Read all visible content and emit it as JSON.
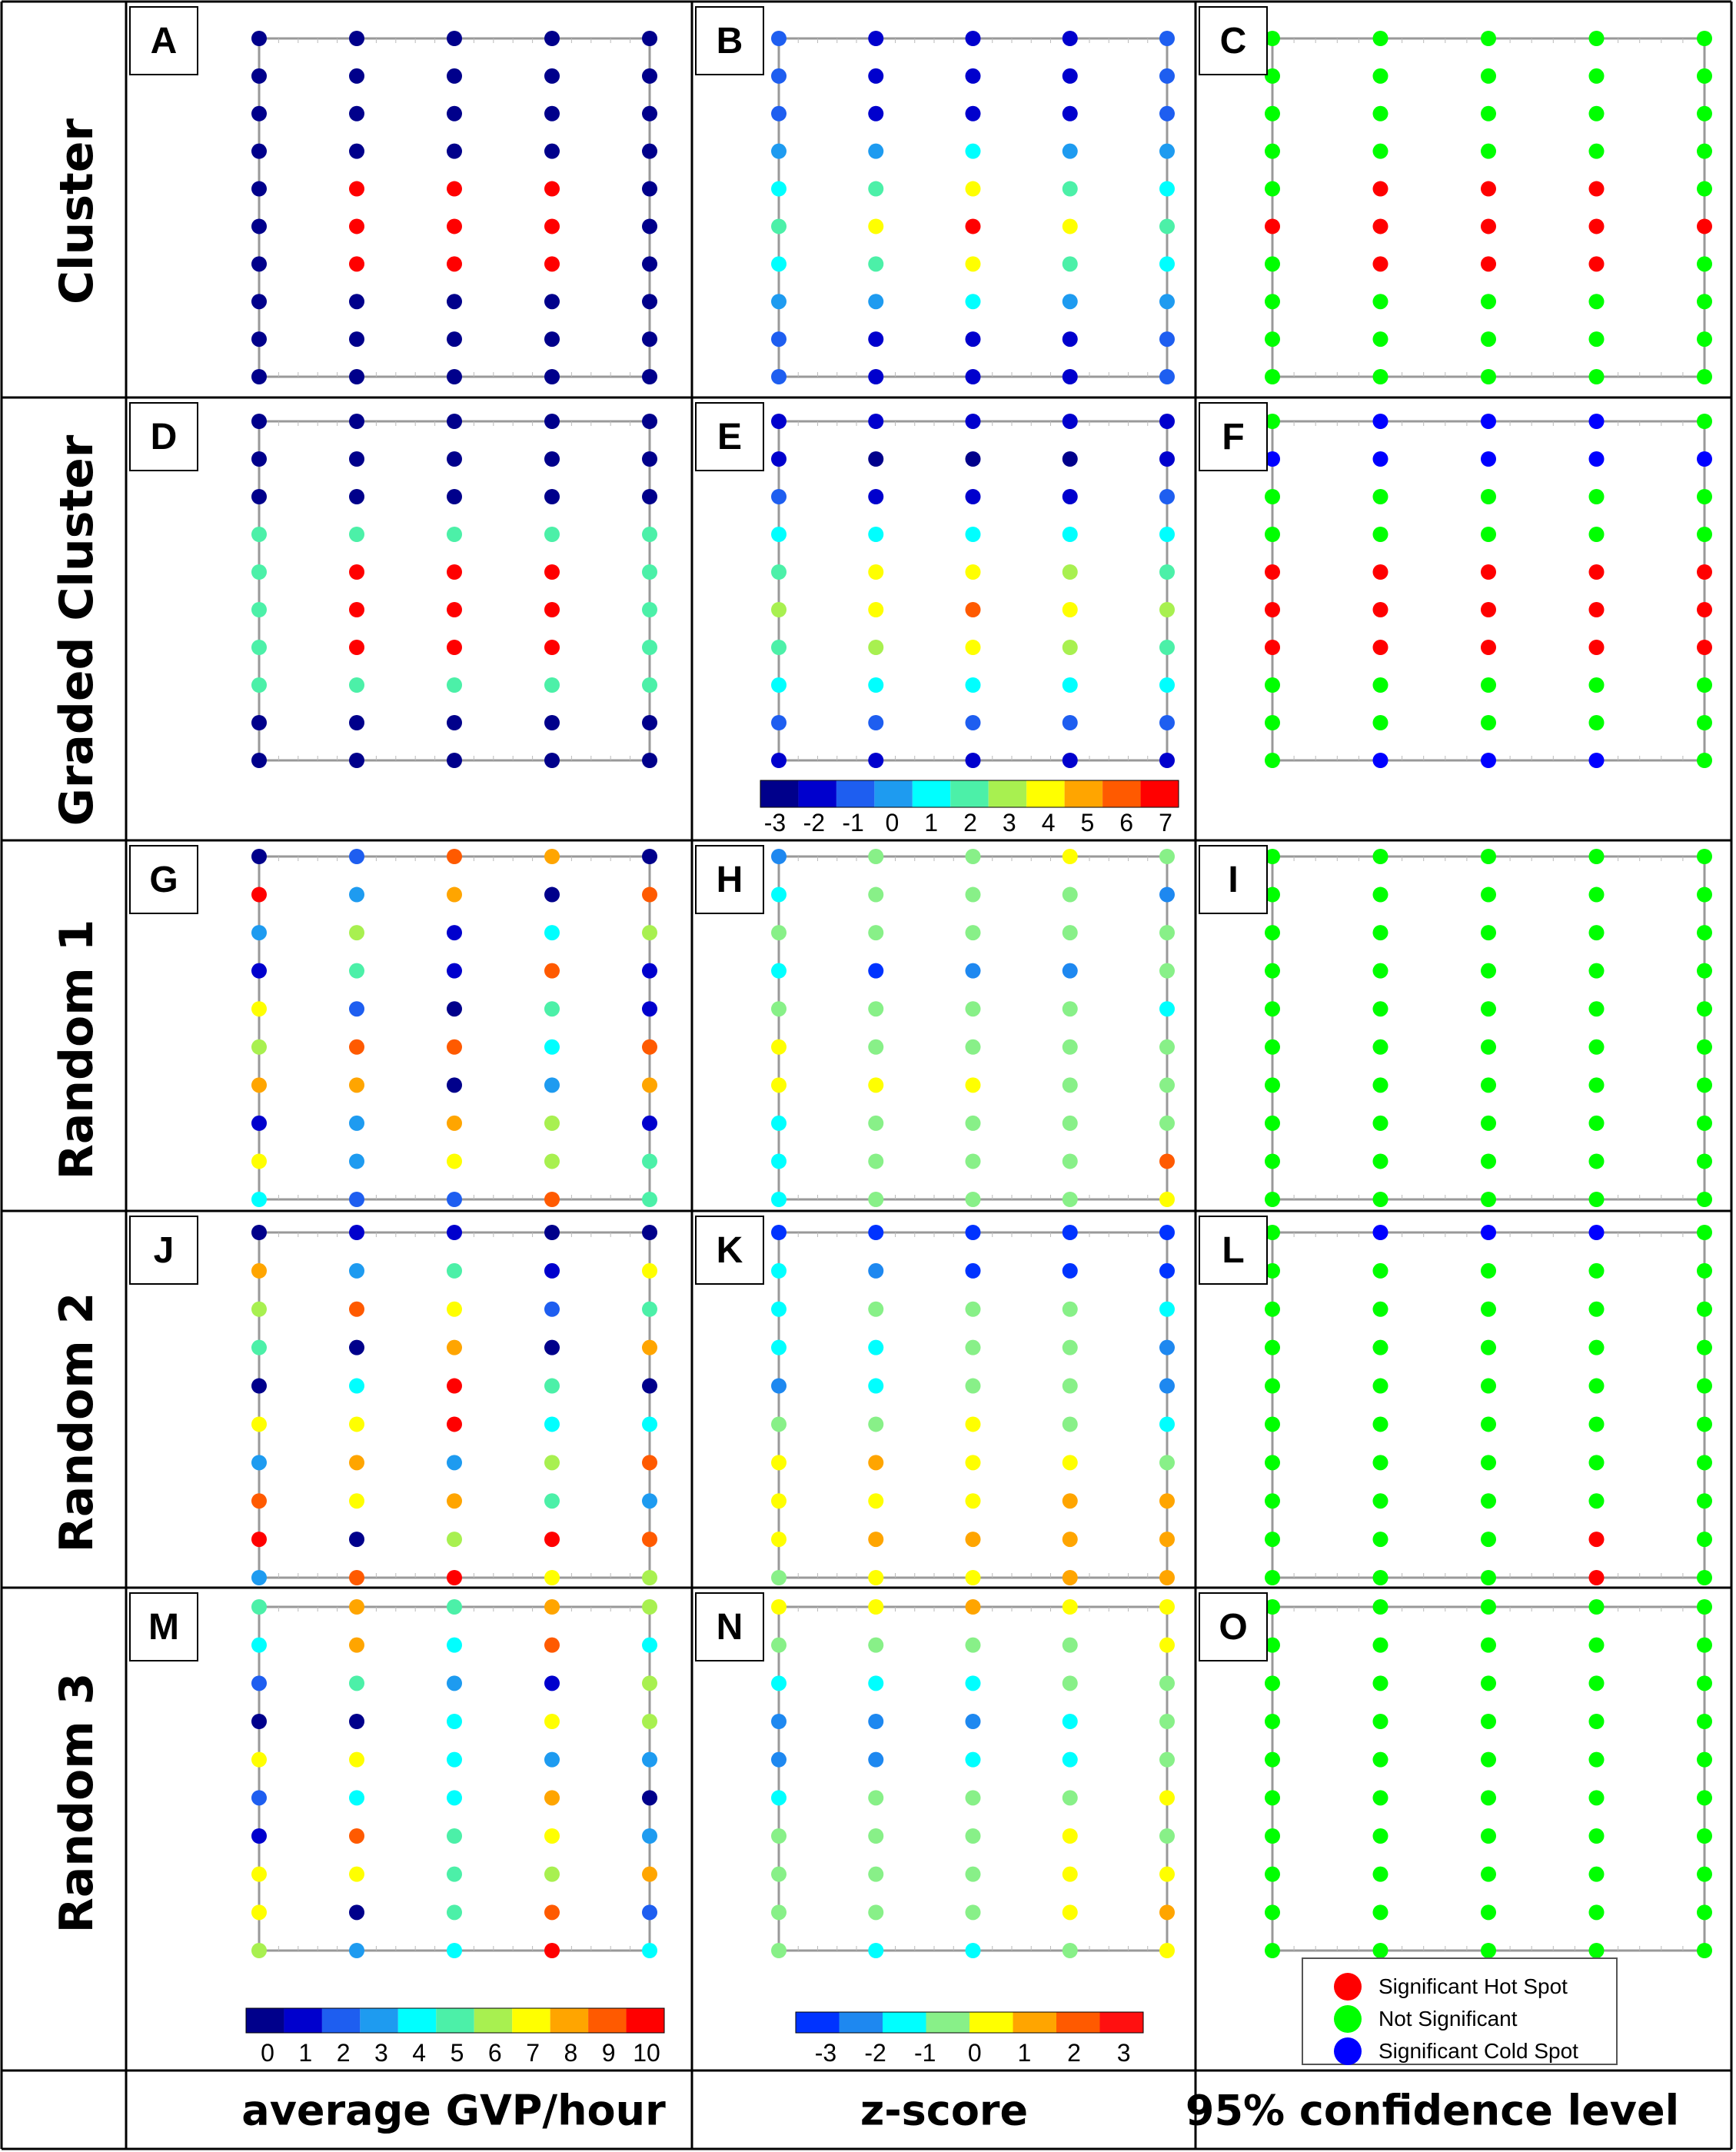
{
  "row_labels": [
    "Cluster",
    "Graded Cluster",
    "Random 1",
    "Random 2",
    "Random 3"
  ],
  "column_labels": [
    "average GVP/hour",
    "z-score",
    "95% confidence level"
  ],
  "panel_letters": [
    "A",
    "B",
    "C",
    "D",
    "E",
    "F",
    "G",
    "H",
    "I",
    "J",
    "K",
    "L",
    "M",
    "N",
    "O"
  ],
  "chart_data": {
    "type": "scatter",
    "description_grid": "5 columns x 10 rows of sampling points per panel; values listed top row to bottom row, each row left to right",
    "colorbars": [
      {
        "name": "graded-cluster-z",
        "ticks": [
          "-3",
          "-2",
          "-1",
          "0",
          "1",
          "2",
          "3",
          "4",
          "5",
          "6",
          "7"
        ],
        "colors": [
          "#00008b",
          "#0000cd",
          "#1e5ef0",
          "#1e9bf0",
          "#00ffff",
          "#4cf0a8",
          "#a8f050",
          "#ffff00",
          "#ffa500",
          "#ff5a00",
          "#ff0000"
        ]
      },
      {
        "name": "gvp",
        "ticks": [
          "0",
          "1",
          "2",
          "3",
          "4",
          "5",
          "6",
          "7",
          "8",
          "9",
          "10"
        ],
        "colors": [
          "#00008b",
          "#0000cd",
          "#1e5ef0",
          "#1e9bf0",
          "#00ffff",
          "#4cf0a8",
          "#a8f050",
          "#ffff00",
          "#ffa500",
          "#ff5a00",
          "#ff0000"
        ]
      },
      {
        "name": "random-z",
        "ticks": [
          "-3",
          "-2",
          "-1",
          "0",
          "1",
          "2",
          "3"
        ],
        "colors": [
          "#0033ff",
          "#1e88f0",
          "#00ffff",
          "#88f088",
          "#ffff00",
          "#ffa500",
          "#ff5a00",
          "#ff1010"
        ]
      }
    ],
    "legend": [
      {
        "label": "Significant Hot Spot",
        "color": "#ff0000"
      },
      {
        "label": "Not Significant",
        "color": "#00ff00"
      },
      {
        "label": "Significant Cold Spot",
        "color": "#0000ff"
      }
    ],
    "panels": [
      {
        "letter": "A",
        "scale": "gvp",
        "values": [
          [
            0,
            0,
            0,
            0,
            0
          ],
          [
            0,
            0,
            0,
            0,
            0
          ],
          [
            0,
            0,
            0,
            0,
            0
          ],
          [
            0,
            0,
            0,
            0,
            0
          ],
          [
            0,
            10,
            10,
            10,
            0
          ],
          [
            0,
            10,
            10,
            10,
            0
          ],
          [
            0,
            10,
            10,
            10,
            0
          ],
          [
            0,
            0,
            0,
            0,
            0
          ],
          [
            0,
            0,
            0,
            0,
            0
          ],
          [
            0,
            0,
            0,
            0,
            0
          ]
        ]
      },
      {
        "letter": "B",
        "scale": "zcolor",
        "values": [
          [
            -1,
            -2,
            -2,
            -2,
            -1
          ],
          [
            -1,
            -2,
            -2,
            -2,
            -1
          ],
          [
            -1,
            -2,
            -2,
            -2,
            -1
          ],
          [
            0,
            0,
            1,
            0,
            0
          ],
          [
            1,
            2,
            4,
            2,
            1
          ],
          [
            2,
            4,
            7,
            4,
            2
          ],
          [
            1,
            2,
            4,
            2,
            1
          ],
          [
            0,
            0,
            1,
            0,
            0
          ],
          [
            -1,
            -2,
            -2,
            -2,
            -1
          ],
          [
            -1,
            -2,
            -2,
            -2,
            -1
          ]
        ]
      },
      {
        "letter": "C",
        "scale": "sig",
        "values": [
          [
            0,
            0,
            0,
            0,
            0
          ],
          [
            0,
            0,
            0,
            0,
            0
          ],
          [
            0,
            0,
            0,
            0,
            0
          ],
          [
            0,
            0,
            0,
            0,
            0
          ],
          [
            0,
            1,
            1,
            1,
            0
          ],
          [
            1,
            1,
            1,
            1,
            1
          ],
          [
            0,
            1,
            1,
            1,
            0
          ],
          [
            0,
            0,
            0,
            0,
            0
          ],
          [
            0,
            0,
            0,
            0,
            0
          ],
          [
            0,
            0,
            0,
            0,
            0
          ]
        ]
      },
      {
        "letter": "D",
        "scale": "gvp",
        "values": [
          [
            0,
            0,
            0,
            0,
            0
          ],
          [
            0,
            0,
            0,
            0,
            0
          ],
          [
            0,
            0,
            0,
            0,
            0
          ],
          [
            5,
            5,
            5,
            5,
            5
          ],
          [
            5,
            10,
            10,
            10,
            5
          ],
          [
            5,
            10,
            10,
            10,
            5
          ],
          [
            5,
            10,
            10,
            10,
            5
          ],
          [
            5,
            5,
            5,
            5,
            5
          ],
          [
            0,
            0,
            0,
            0,
            0
          ],
          [
            0,
            0,
            0,
            0,
            0
          ]
        ]
      },
      {
        "letter": "E",
        "scale": "zcolor",
        "values": [
          [
            -2,
            -2,
            -2,
            -2,
            -2
          ],
          [
            -2,
            -3,
            -3,
            -3,
            -2
          ],
          [
            -1,
            -2,
            -2,
            -2,
            -1
          ],
          [
            1,
            1,
            1,
            1,
            1
          ],
          [
            2,
            4,
            4,
            3,
            2
          ],
          [
            3,
            4,
            6,
            4,
            3
          ],
          [
            2,
            3,
            4,
            3,
            2
          ],
          [
            1,
            1,
            1,
            1,
            1
          ],
          [
            -1,
            -1,
            -1,
            -1,
            -1
          ],
          [
            -2,
            -2,
            -2,
            -2,
            -2
          ]
        ]
      },
      {
        "letter": "F",
        "scale": "sig",
        "values": [
          [
            0,
            -1,
            -1,
            -1,
            0
          ],
          [
            -1,
            -1,
            -1,
            -1,
            -1
          ],
          [
            0,
            0,
            0,
            0,
            0
          ],
          [
            0,
            0,
            0,
            0,
            0
          ],
          [
            1,
            1,
            1,
            1,
            1
          ],
          [
            1,
            1,
            1,
            1,
            1
          ],
          [
            1,
            1,
            1,
            1,
            1
          ],
          [
            0,
            0,
            0,
            0,
            0
          ],
          [
            0,
            0,
            0,
            0,
            0
          ],
          [
            0,
            -1,
            -1,
            -1,
            0
          ]
        ]
      },
      {
        "letter": "G",
        "scale": "gvp",
        "values": [
          [
            0,
            2,
            9,
            8,
            0
          ],
          [
            10,
            3,
            8,
            0,
            9
          ],
          [
            3,
            6,
            1,
            4,
            6
          ],
          [
            1,
            5,
            1,
            9,
            1
          ],
          [
            7,
            2,
            0,
            5,
            1
          ],
          [
            6,
            9,
            9,
            4,
            9
          ],
          [
            8,
            8,
            0,
            3,
            8
          ],
          [
            1,
            3,
            8,
            6,
            1
          ],
          [
            7,
            3,
            7,
            6,
            5
          ],
          [
            4,
            2,
            2,
            9,
            5
          ]
        ]
      },
      {
        "letter": "H",
        "scale": "zrand",
        "values": [
          [
            0,
            2,
            2,
            3,
            2
          ],
          [
            1,
            2,
            2,
            2,
            0
          ],
          [
            2,
            2,
            2,
            2,
            2
          ],
          [
            1,
            -1,
            0,
            0,
            2
          ],
          [
            2,
            2,
            2,
            2,
            1
          ],
          [
            3,
            2,
            2,
            2,
            2
          ],
          [
            3,
            3,
            3,
            2,
            2
          ],
          [
            1,
            2,
            2,
            2,
            2
          ],
          [
            1,
            2,
            2,
            2,
            5
          ],
          [
            1,
            2,
            2,
            2,
            3
          ]
        ]
      },
      {
        "letter": "I",
        "scale": "sig",
        "values": [
          [
            0,
            0,
            0,
            0,
            0
          ],
          [
            0,
            0,
            0,
            0,
            0
          ],
          [
            0,
            0,
            0,
            0,
            0
          ],
          [
            0,
            0,
            0,
            0,
            0
          ],
          [
            0,
            0,
            0,
            0,
            0
          ],
          [
            0,
            0,
            0,
            0,
            0
          ],
          [
            0,
            0,
            0,
            0,
            0
          ],
          [
            0,
            0,
            0,
            0,
            0
          ],
          [
            0,
            0,
            0,
            0,
            0
          ],
          [
            0,
            0,
            0,
            0,
            0
          ]
        ]
      },
      {
        "letter": "J",
        "scale": "gvp",
        "values": [
          [
            0,
            1,
            1,
            0,
            0
          ],
          [
            8,
            3,
            5,
            1,
            7
          ],
          [
            6,
            9,
            7,
            2,
            5
          ],
          [
            5,
            0,
            8,
            0,
            8
          ],
          [
            0,
            4,
            10,
            5,
            0
          ],
          [
            7,
            7,
            10,
            4,
            4
          ],
          [
            3,
            8,
            3,
            6,
            9
          ],
          [
            9,
            7,
            8,
            5,
            3
          ],
          [
            10,
            0,
            6,
            10,
            9
          ],
          [
            3,
            9,
            10,
            7,
            6
          ]
        ]
      },
      {
        "letter": "K",
        "scale": "zrand",
        "values": [
          [
            -1,
            -1,
            -2,
            -1,
            -1
          ],
          [
            1,
            0,
            -1,
            -1,
            -1
          ],
          [
            1,
            2,
            2,
            2,
            1
          ],
          [
            1,
            1,
            2,
            2,
            0
          ],
          [
            0,
            1,
            2,
            2,
            0
          ],
          [
            2,
            2,
            3,
            2,
            1
          ],
          [
            3,
            4,
            3,
            3,
            2
          ],
          [
            3,
            3,
            3,
            4,
            4
          ],
          [
            3,
            4,
            4,
            4,
            4
          ],
          [
            2,
            3,
            3,
            4,
            4
          ]
        ]
      },
      {
        "letter": "L",
        "scale": "sig",
        "values": [
          [
            0,
            -1,
            -1,
            -1,
            0
          ],
          [
            0,
            0,
            0,
            0,
            0
          ],
          [
            0,
            0,
            0,
            0,
            0
          ],
          [
            0,
            0,
            0,
            0,
            0
          ],
          [
            0,
            0,
            0,
            0,
            0
          ],
          [
            0,
            0,
            0,
            0,
            0
          ],
          [
            0,
            0,
            0,
            0,
            0
          ],
          [
            0,
            0,
            0,
            0,
            0
          ],
          [
            0,
            0,
            0,
            1,
            0
          ],
          [
            0,
            0,
            0,
            1,
            0
          ]
        ]
      },
      {
        "letter": "M",
        "scale": "gvp",
        "values": [
          [
            5,
            8,
            5,
            8,
            6
          ],
          [
            4,
            8,
            4,
            9,
            4
          ],
          [
            2,
            5,
            3,
            1,
            6
          ],
          [
            0,
            0,
            4,
            7,
            6
          ],
          [
            7,
            7,
            4,
            3,
            3
          ],
          [
            2,
            4,
            4,
            8,
            0
          ],
          [
            1,
            9,
            5,
            7,
            3
          ],
          [
            7,
            7,
            5,
            6,
            8
          ],
          [
            7,
            0,
            5,
            9,
            2
          ],
          [
            6,
            3,
            4,
            10,
            4
          ]
        ]
      },
      {
        "letter": "N",
        "scale": "zrand",
        "values": [
          [
            3,
            3,
            4,
            3,
            3
          ],
          [
            2,
            2,
            2,
            2,
            3
          ],
          [
            1,
            1,
            1,
            2,
            2
          ],
          [
            0,
            0,
            0,
            1,
            2
          ],
          [
            0,
            0,
            1,
            1,
            2
          ],
          [
            1,
            2,
            2,
            2,
            3
          ],
          [
            2,
            2,
            2,
            3,
            2
          ],
          [
            2,
            2,
            2,
            3,
            3
          ],
          [
            2,
            2,
            2,
            3,
            4
          ],
          [
            2,
            1,
            1,
            2,
            3
          ]
        ]
      },
      {
        "letter": "O",
        "scale": "sig",
        "values": [
          [
            0,
            0,
            0,
            0,
            0
          ],
          [
            0,
            0,
            0,
            0,
            0
          ],
          [
            0,
            0,
            0,
            0,
            0
          ],
          [
            0,
            0,
            0,
            0,
            0
          ],
          [
            0,
            0,
            0,
            0,
            0
          ],
          [
            0,
            0,
            0,
            0,
            0
          ],
          [
            0,
            0,
            0,
            0,
            0
          ],
          [
            0,
            0,
            0,
            0,
            0
          ],
          [
            0,
            0,
            0,
            0,
            0
          ],
          [
            0,
            0,
            0,
            0,
            0
          ]
        ]
      }
    ]
  }
}
